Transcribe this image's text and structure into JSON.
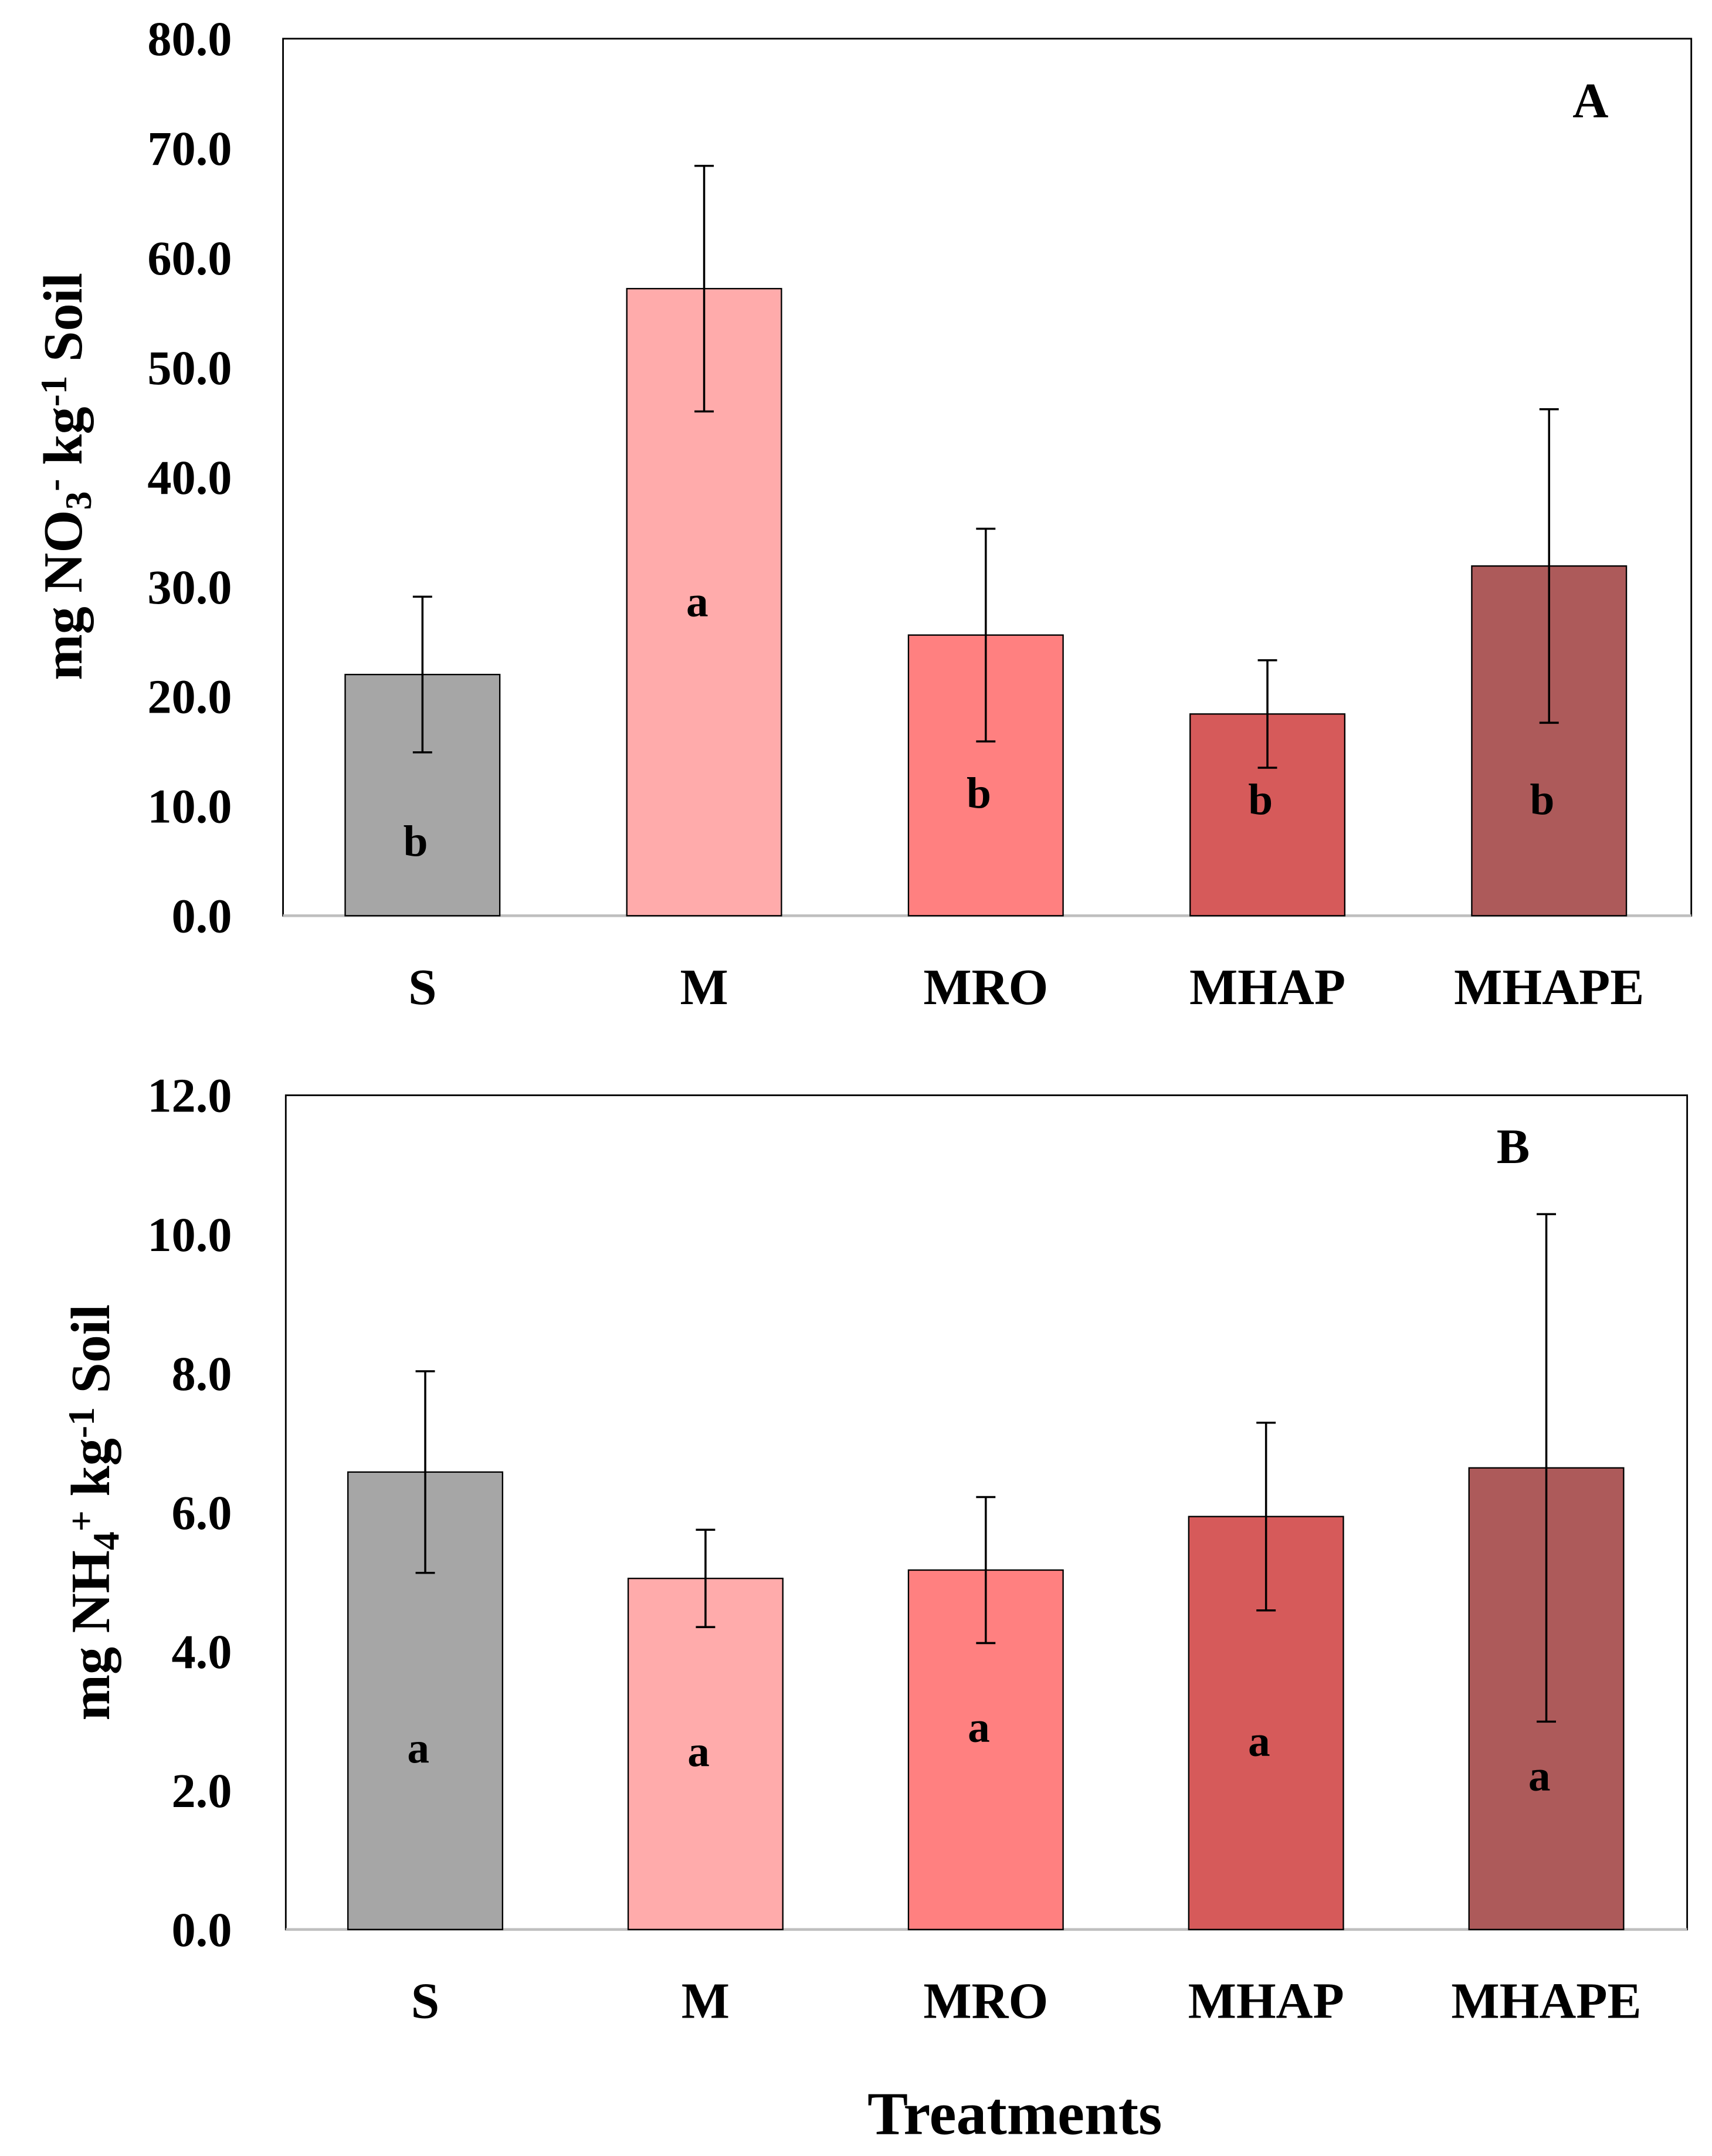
{
  "chart_data": [
    {
      "type": "bar",
      "panel_label": "A",
      "categories": [
        "S",
        "M",
        "MRO",
        "MHAP",
        "MHAPE"
      ],
      "values": [
        22.0,
        57.2,
        25.6,
        18.4,
        31.9
      ],
      "error": [
        7.1,
        11.2,
        9.7,
        4.9,
        14.3
      ],
      "significance_letters": [
        "b",
        "a",
        "b",
        "b",
        "b"
      ],
      "letter_y": [
        6.7,
        28.6,
        11.1,
        10.5,
        10.5
      ],
      "colors": [
        "#a6a6a6",
        "#ffabab",
        "#ff8080",
        "#d65a5a",
        "#ad5a5a"
      ],
      "ylabel_parts": [
        {
          "text": "mg NO",
          "shift": "none"
        },
        {
          "text": "3",
          "shift": "sub"
        },
        {
          "text": "-",
          "shift": "super"
        },
        {
          "text": " kg",
          "shift": "none"
        },
        {
          "text": "-1",
          "shift": "super"
        },
        {
          "text": " Soil",
          "shift": "none"
        }
      ],
      "ylim": [
        0,
        80
      ],
      "yticks": [
        "0.0",
        "10.0",
        "20.0",
        "30.0",
        "40.0",
        "50.0",
        "60.0",
        "70.0",
        "80.0"
      ],
      "grid": false
    },
    {
      "type": "bar",
      "panel_label": "B",
      "categories": [
        "S",
        "M",
        "MRO",
        "MHAP",
        "MHAPE"
      ],
      "values": [
        6.58,
        5.05,
        5.17,
        5.94,
        6.64
      ],
      "error": [
        1.45,
        0.7,
        1.05,
        1.35,
        3.65
      ],
      "significance_letters": [
        "a",
        "a",
        "a",
        "a",
        "a"
      ],
      "letter_y": [
        2.6,
        2.55,
        2.9,
        2.7,
        2.2
      ],
      "colors": [
        "#a6a6a6",
        "#ffabab",
        "#ff8080",
        "#d65a5a",
        "#ad5a5a"
      ],
      "ylabel_parts": [
        {
          "text": "mg NH",
          "shift": "none"
        },
        {
          "text": "4",
          "shift": "sub"
        },
        {
          "text": "+",
          "shift": "super"
        },
        {
          "text": " kg",
          "shift": "none"
        },
        {
          "text": "-1",
          "shift": "super"
        },
        {
          "text": " Soil",
          "shift": "none"
        }
      ],
      "ylim": [
        0,
        12
      ],
      "yticks": [
        "0.0",
        "2.0",
        "4.0",
        "6.0",
        "8.0",
        "10.0",
        "12.0"
      ],
      "xlabel": "Treatments",
      "grid": false
    }
  ]
}
